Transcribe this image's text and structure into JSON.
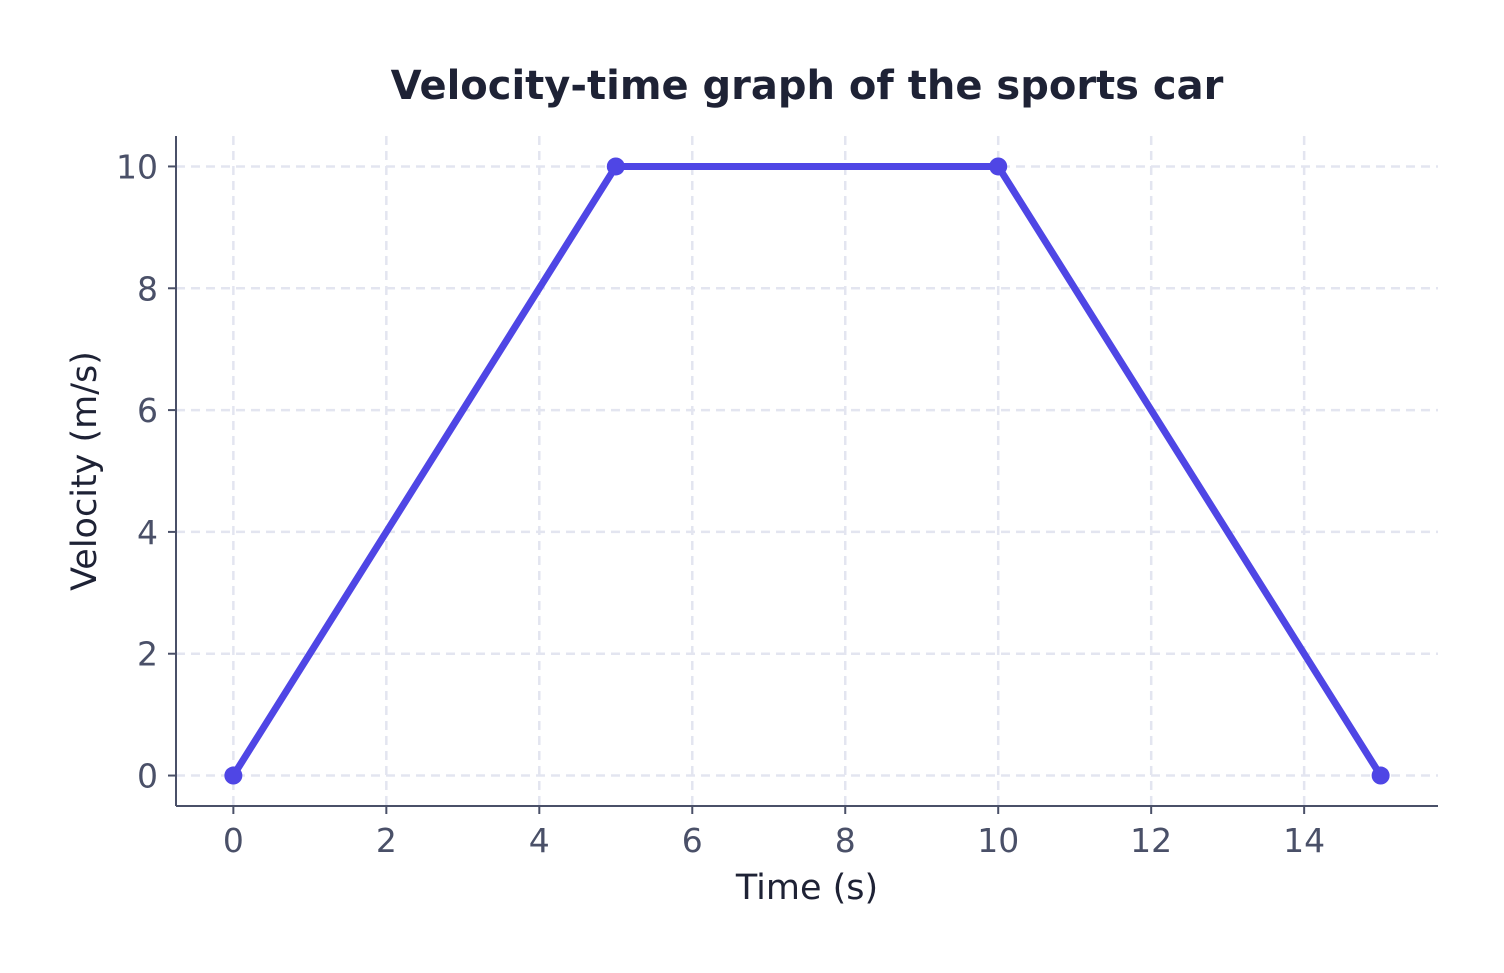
{
  "chart_data": {
    "type": "line",
    "title": "Velocity-time graph of the sports car",
    "xlabel": "Time (s)",
    "ylabel": "Velocity (m/s)",
    "xlim": [
      -0.75,
      15.75
    ],
    "ylim": [
      -0.5,
      10.5
    ],
    "x_ticks": [
      0,
      2,
      4,
      6,
      8,
      10,
      12,
      14
    ],
    "y_ticks": [
      0,
      2,
      4,
      6,
      8,
      10
    ],
    "grid": true,
    "series": [
      {
        "color": "#4f46e5",
        "points": [
          {
            "x": 0,
            "y": 0
          },
          {
            "x": 5,
            "y": 10
          },
          {
            "x": 10,
            "y": 10
          },
          {
            "x": 15,
            "y": 0
          }
        ]
      }
    ]
  }
}
